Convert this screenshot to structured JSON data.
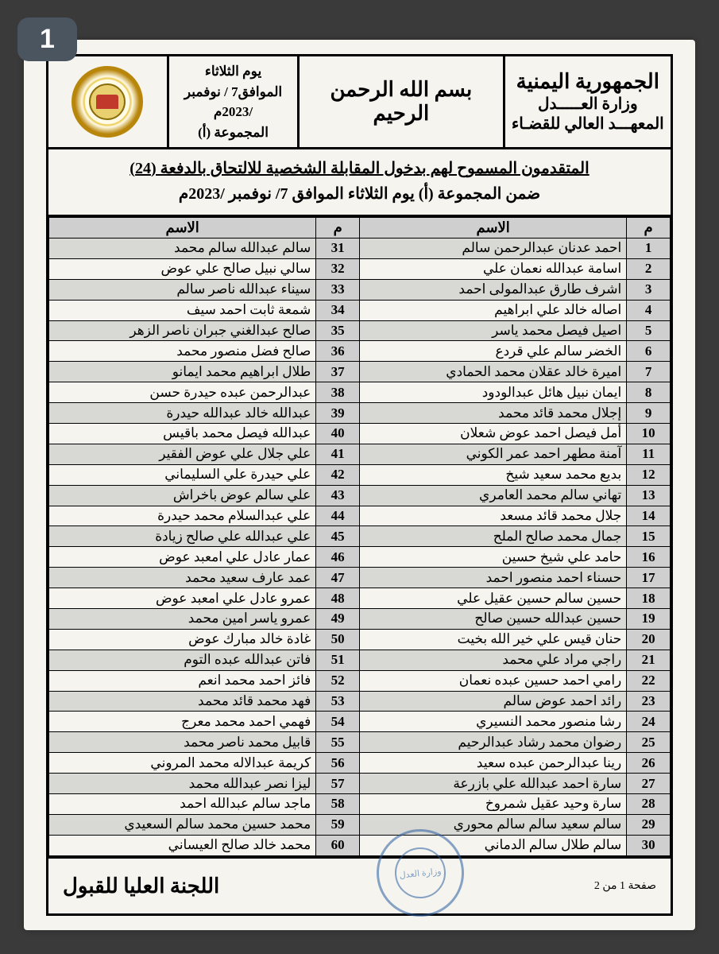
{
  "badge": "1",
  "header": {
    "org_line1": "الجمهورية اليمنية",
    "org_line2": "وزارة العـــــدل",
    "org_line3": "المعهـــد العالي للقضـاء",
    "bismillah": "بسم الله الرحمن الرحيم",
    "date_line1": "يوم الثلاثاء",
    "date_line2": "الموافق7 / نوفمبر",
    "date_line3": "/2023م",
    "date_line4": "المجموعة (أ)"
  },
  "title": {
    "line1": "المتقدمون المسموح لهم بدخول المقابلة الشخصية للالتحاق بالدفعة (24)",
    "line2": "ضمن المجموعة (أ) يوم الثلاثاء الموافق 7/ نوفمبر /2023م"
  },
  "columns": {
    "num": "م",
    "name": "الاسم"
  },
  "rowsRight": [
    {
      "n": 1,
      "name": "احمد عدنان عبدالرحمن سالم"
    },
    {
      "n": 2,
      "name": "اسامة عبدالله نعمان علي"
    },
    {
      "n": 3,
      "name": "اشرف طارق عبدالمولى احمد"
    },
    {
      "n": 4,
      "name": "اصاله خالد علي ابراهيم"
    },
    {
      "n": 5,
      "name": "اصيل فيصل محمد ياسر"
    },
    {
      "n": 6,
      "name": "الخضر سالم علي قردع"
    },
    {
      "n": 7,
      "name": "اميرة خالد عقلان محمد الحمادي"
    },
    {
      "n": 8,
      "name": "ايمان نبيل هائل عبدالودود"
    },
    {
      "n": 9,
      "name": "إجلال محمد قائد محمد"
    },
    {
      "n": 10,
      "name": "أمل فيصل احمد عوض شعلان"
    },
    {
      "n": 11,
      "name": "آمنة مطهر احمد عمر الكوني"
    },
    {
      "n": 12,
      "name": "بديع محمد سعيد شيخ"
    },
    {
      "n": 13,
      "name": "تهاني سالم محمد العامري"
    },
    {
      "n": 14,
      "name": "جلال محمد قائد مسعد"
    },
    {
      "n": 15,
      "name": "جمال محمد صالح الملح"
    },
    {
      "n": 16,
      "name": "حامد علي شيخ حسين"
    },
    {
      "n": 17,
      "name": "حسناء احمد منصور احمد"
    },
    {
      "n": 18,
      "name": "حسين سالم حسين عقيل علي"
    },
    {
      "n": 19,
      "name": "حسين عبدالله حسين صالح"
    },
    {
      "n": 20,
      "name": "حنان قيس علي خير الله بخيت"
    },
    {
      "n": 21,
      "name": "راجي مراد علي محمد"
    },
    {
      "n": 22,
      "name": "رامي احمد حسين عبده نعمان"
    },
    {
      "n": 23,
      "name": "رائد احمد عوض سالم"
    },
    {
      "n": 24,
      "name": "رشا منصور محمد النسيري"
    },
    {
      "n": 25,
      "name": "رضوان محمد رشاد عبدالرحيم"
    },
    {
      "n": 26,
      "name": "رينا عبدالرحمن عبده سعيد"
    },
    {
      "n": 27,
      "name": "سارة احمد عبدالله علي بازرعة"
    },
    {
      "n": 28,
      "name": "سارة وحيد عقيل شمروخ"
    },
    {
      "n": 29,
      "name": "سالم سعيد سالم سالم محوري"
    },
    {
      "n": 30,
      "name": "سالم طلال سالم الدماني"
    }
  ],
  "rowsLeft": [
    {
      "n": 31,
      "name": "سالم عبدالله سالم محمد"
    },
    {
      "n": 32,
      "name": "سالي نبيل صالح علي عوض"
    },
    {
      "n": 33,
      "name": "سيناء عبدالله ناصر سالم"
    },
    {
      "n": 34,
      "name": "شمعة ثابت احمد سيف"
    },
    {
      "n": 35,
      "name": "صالح عبدالغني جبران ناصر الزهر"
    },
    {
      "n": 36,
      "name": "صالح فضل منصور محمد"
    },
    {
      "n": 37,
      "name": "طلال ابراهيم محمد ايمانو"
    },
    {
      "n": 38,
      "name": "عبدالرحمن عبده حيدرة حسن"
    },
    {
      "n": 39,
      "name": "عبدالله خالد عبدالله حيدرة"
    },
    {
      "n": 40,
      "name": "عبدالله فيصل محمد باقيس"
    },
    {
      "n": 41,
      "name": "علي جلال علي عوض الفقير"
    },
    {
      "n": 42,
      "name": "علي حيدرة علي السليماني"
    },
    {
      "n": 43,
      "name": "علي سالم عوض باخراش"
    },
    {
      "n": 44,
      "name": "علي عبدالسلام محمد حيدرة"
    },
    {
      "n": 45,
      "name": "علي عبدالله علي صالح زيادة"
    },
    {
      "n": 46,
      "name": "عمار عادل علي امعبد عوض"
    },
    {
      "n": 47,
      "name": "عمد عارف سعيد محمد"
    },
    {
      "n": 48,
      "name": "عمرو عادل علي امعبد عوض"
    },
    {
      "n": 49,
      "name": "عمرو ياسر امين محمد"
    },
    {
      "n": 50,
      "name": "غادة خالد مبارك عوض"
    },
    {
      "n": 51,
      "name": "فاتن عبدالله عبده التوم"
    },
    {
      "n": 52,
      "name": "فائز احمد محمد انعم"
    },
    {
      "n": 53,
      "name": "فهد محمد قائد محمد"
    },
    {
      "n": 54,
      "name": "فهمي احمد محمد معرج"
    },
    {
      "n": 55,
      "name": "قابيل محمد ناصر محمد"
    },
    {
      "n": 56,
      "name": "كريمة عبدالاله محمد المروني"
    },
    {
      "n": 57,
      "name": "ليزا نصر عبدالله محمد"
    },
    {
      "n": 58,
      "name": "ماجد سالم عبدالله احمد"
    },
    {
      "n": 59,
      "name": "محمد حسين محمد سالم السعيدي"
    },
    {
      "n": 60,
      "name": "محمد خالد صالح العيساني"
    }
  ],
  "footer": {
    "page": "صفحة 1 من 2",
    "committee": "اللجنة العليا للقبول",
    "stamp": "وزارة العدل"
  },
  "style": {
    "paper_bg": "#f5f4ef",
    "shade_bg": "#d8d8d4",
    "header_shade": "#cfcfcf",
    "border": "#000000",
    "stamp_color": "#2b5fa0",
    "seal_gold": "#b8860b"
  }
}
